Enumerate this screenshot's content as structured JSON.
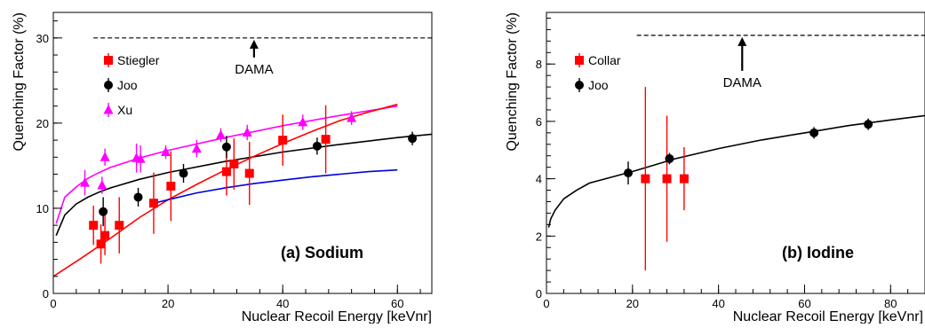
{
  "chart_data": [
    {
      "type": "scatter",
      "panel_label": "(a) Sodium",
      "xlabel": "Nuclear Recoil Energy [keVnr]",
      "ylabel": "Quenching Factor (%)",
      "xlim": [
        0,
        66
      ],
      "ylim": [
        0,
        33
      ],
      "x_ticks": [
        0,
        20,
        40,
        60
      ],
      "y_ticks": [
        0,
        10,
        20,
        30
      ],
      "legend_position": "top-left",
      "grid": false,
      "reference_line": {
        "label": "DAMA",
        "y": 30,
        "x_start": 7,
        "x_end": 66,
        "arrow_x": 35,
        "style": "dashed"
      },
      "series": [
        {
          "name": "Stiegler",
          "marker": "square",
          "color": "#ff0000",
          "points": [
            {
              "x": 7,
              "y": 8,
              "err": 2.3
            },
            {
              "x": 8.3,
              "y": 5.8,
              "err": 2.3
            },
            {
              "x": 9,
              "y": 6.8,
              "err": 2.3
            },
            {
              "x": 11.5,
              "y": 8,
              "err": 3.3
            },
            {
              "x": 17.5,
              "y": 10.6,
              "err": 3.6
            },
            {
              "x": 20.5,
              "y": 12.6,
              "err": 4.1
            },
            {
              "x": 30.2,
              "y": 14.3,
              "err": 2.8
            },
            {
              "x": 31.5,
              "y": 15.2,
              "err": 3.0
            },
            {
              "x": 34.2,
              "y": 14.1,
              "err": 3.7
            },
            {
              "x": 40,
              "y": 18,
              "err": 3.0
            },
            {
              "x": 47.5,
              "y": 18.1,
              "err": 4.0
            }
          ]
        },
        {
          "name": "Joo",
          "marker": "circle",
          "color": "#000000",
          "points": [
            {
              "x": 8.7,
              "y": 9.6,
              "err": 1.7
            },
            {
              "x": 14.8,
              "y": 11.3,
              "err": 1.1
            },
            {
              "x": 22.7,
              "y": 14.1,
              "err": 1.1
            },
            {
              "x": 30.2,
              "y": 17.2,
              "err": 1.3
            },
            {
              "x": 46,
              "y": 17.3,
              "err": 1.0
            },
            {
              "x": 62.6,
              "y": 18.2,
              "err": 0.8
            }
          ]
        },
        {
          "name": "Xu",
          "marker": "triangle",
          "color": "#ff00ff",
          "points": [
            {
              "x": 5.5,
              "y": 13,
              "err": 1.5
            },
            {
              "x": 8.5,
              "y": 12.7,
              "err": 1.0
            },
            {
              "x": 9,
              "y": 16,
              "err": 1.0
            },
            {
              "x": 14.5,
              "y": 15.9,
              "err": 1.7
            },
            {
              "x": 15.2,
              "y": 15.8,
              "err": 1.6
            },
            {
              "x": 19.6,
              "y": 16.6,
              "err": 0.8
            },
            {
              "x": 25,
              "y": 17,
              "err": 1.0
            },
            {
              "x": 29.2,
              "y": 18.6,
              "err": 0.8
            },
            {
              "x": 33.8,
              "y": 18.9,
              "err": 0.9
            },
            {
              "x": 43.5,
              "y": 20.1,
              "err": 0.9
            },
            {
              "x": 52,
              "y": 20.6,
              "err": 0.8
            }
          ]
        }
      ],
      "curves": [
        {
          "color": "#ff00ff",
          "x": [
            0.5,
            2,
            4,
            6,
            8,
            10,
            15,
            20,
            30,
            40,
            50,
            60
          ],
          "y": [
            8.2,
            11.3,
            12.5,
            13.5,
            14.2,
            14.8,
            15.9,
            16.8,
            18.3,
            19.7,
            20.9,
            22.0
          ]
        },
        {
          "color": "#000000",
          "x": [
            0.5,
            2,
            4,
            6,
            8,
            10,
            15,
            20,
            30,
            40,
            50,
            60,
            66
          ],
          "y": [
            6.8,
            9.2,
            10.5,
            11.3,
            11.9,
            12.4,
            13.4,
            14.2,
            15.5,
            16.6,
            17.5,
            18.3,
            18.7
          ]
        },
        {
          "color": "#ff0000",
          "x": [
            0,
            5,
            10,
            15,
            20,
            25,
            30,
            35,
            40,
            45,
            50,
            55,
            60
          ],
          "y": [
            2,
            4.2,
            6.5,
            8.9,
            11.0,
            12.8,
            14.5,
            16.1,
            17.6,
            19.0,
            20.3,
            21.3,
            22.2
          ]
        },
        {
          "color": "#0000dd",
          "x": [
            17,
            20,
            25,
            30,
            35,
            40,
            45,
            50,
            55,
            60
          ],
          "y": [
            10.5,
            11.0,
            11.8,
            12.4,
            12.9,
            13.3,
            13.7,
            14.0,
            14.3,
            14.5
          ]
        }
      ]
    },
    {
      "type": "scatter",
      "panel_label": "(b) Iodine",
      "xlabel": "Nuclear Recoil Energy [keVnr]",
      "ylabel": "Quenching Factor (%)",
      "xlim": [
        0,
        88
      ],
      "ylim": [
        0,
        9.8
      ],
      "x_ticks": [
        0,
        20,
        40,
        60,
        80
      ],
      "y_ticks": [
        0,
        2,
        4,
        6,
        8
      ],
      "legend_position": "top-left",
      "grid": false,
      "reference_line": {
        "label": "DAMA",
        "y": 9,
        "x_start": 21,
        "x_end": 88,
        "arrow_x": 45.5,
        "style": "dashed"
      },
      "series": [
        {
          "name": "Collar",
          "marker": "square",
          "color": "#ff0000",
          "points": [
            {
              "x": 23,
              "y": 4,
              "err": 3.2
            },
            {
              "x": 28,
              "y": 4,
              "err": 2.2
            },
            {
              "x": 32,
              "y": 4,
              "err": 1.1
            }
          ]
        },
        {
          "name": "Joo",
          "marker": "circle",
          "color": "#000000",
          "points": [
            {
              "x": 19,
              "y": 4.2,
              "err": 0.4
            },
            {
              "x": 28.6,
              "y": 4.7,
              "err": 0.2
            },
            {
              "x": 62.2,
              "y": 5.6,
              "err": 0.2
            },
            {
              "x": 74.8,
              "y": 5.9,
              "err": 0.2
            }
          ]
        }
      ],
      "curves": [
        {
          "color": "#000000",
          "x": [
            0.5,
            1,
            2,
            4,
            7,
            10,
            15,
            20,
            30,
            40,
            50,
            60,
            70,
            80,
            88
          ],
          "y": [
            2.3,
            2.6,
            2.9,
            3.3,
            3.6,
            3.85,
            4.05,
            4.25,
            4.7,
            5.05,
            5.35,
            5.6,
            5.85,
            6.05,
            6.2
          ]
        }
      ]
    }
  ]
}
